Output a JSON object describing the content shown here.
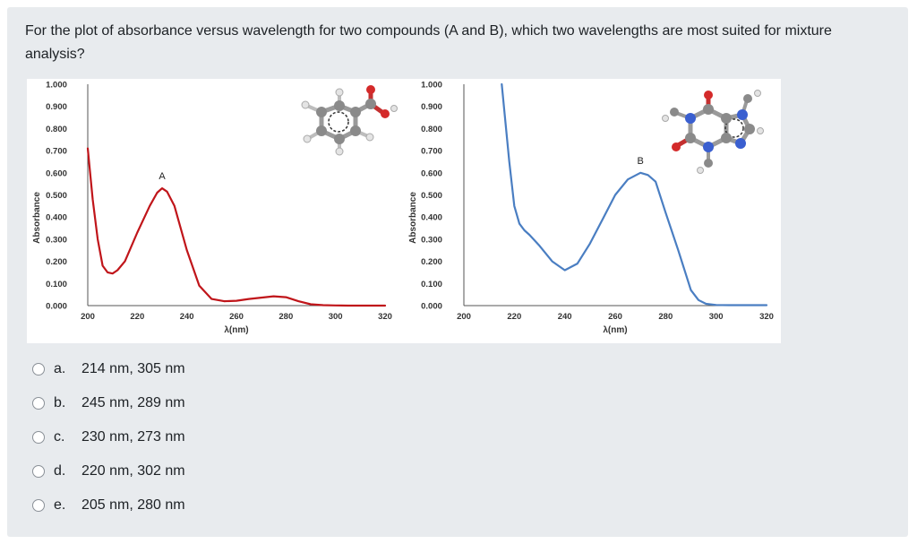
{
  "question": {
    "text": "For the plot of absorbance versus wavelength for two compounds (A and B), which two wavelengths are most suited for mixture analysis?"
  },
  "chart_data": [
    {
      "type": "line",
      "xlabel": "λ(nm)",
      "ylabel": "Absorbance",
      "xlim": [
        200,
        320
      ],
      "ylim": [
        0,
        1.0
      ],
      "xticks": [
        "200",
        "220",
        "240",
        "260",
        "280",
        "300",
        "320"
      ],
      "yticks": [
        "0.000",
        "0.100",
        "0.200",
        "0.300",
        "0.400",
        "0.500",
        "0.600",
        "0.700",
        "0.800",
        "0.900",
        "1.000"
      ],
      "annotation": "A",
      "grid": false,
      "series": [
        {
          "color": "#c0151a",
          "x": [
            200,
            202,
            204,
            206,
            208,
            210,
            212,
            215,
            220,
            225,
            228,
            230,
            232,
            235,
            240,
            245,
            250,
            255,
            260,
            265,
            270,
            275,
            280,
            285,
            290,
            295,
            300,
            305,
            310,
            320
          ],
          "y": [
            0.71,
            0.48,
            0.3,
            0.18,
            0.15,
            0.145,
            0.16,
            0.2,
            0.33,
            0.45,
            0.51,
            0.53,
            0.515,
            0.45,
            0.25,
            0.09,
            0.03,
            0.02,
            0.022,
            0.03,
            0.036,
            0.042,
            0.038,
            0.02,
            0.006,
            0.002,
            0.001,
            0.0,
            0.0,
            0.0
          ]
        }
      ]
    },
    {
      "type": "line",
      "xlabel": "λ(nm)",
      "ylabel": "Absorbance",
      "xlim": [
        200,
        320
      ],
      "ylim": [
        0,
        1.0
      ],
      "xticks": [
        "200",
        "220",
        "240",
        "260",
        "280",
        "300",
        "320"
      ],
      "yticks": [
        "0.000",
        "0.100",
        "0.200",
        "0.300",
        "0.400",
        "0.500",
        "0.600",
        "0.700",
        "0.800",
        "0.900",
        "1.000"
      ],
      "annotation": "B",
      "grid": false,
      "series": [
        {
          "color": "#4a7ec2",
          "x": [
            215,
            218,
            220,
            222,
            224,
            226,
            230,
            235,
            240,
            245,
            250,
            255,
            260,
            265,
            270,
            273,
            276,
            280,
            285,
            290,
            293,
            296,
            300,
            305,
            310,
            320
          ],
          "y": [
            1.0,
            0.65,
            0.45,
            0.37,
            0.34,
            0.32,
            0.27,
            0.2,
            0.16,
            0.19,
            0.28,
            0.39,
            0.5,
            0.57,
            0.6,
            0.59,
            0.56,
            0.42,
            0.25,
            0.07,
            0.025,
            0.008,
            0.003,
            0.002,
            0.002,
            0.002
          ]
        }
      ]
    }
  ],
  "molecules": {
    "left_icon": "benzoic-acid-molecule-icon",
    "right_icon": "caffeine-molecule-icon"
  },
  "options": [
    {
      "letter": "a.",
      "text": "214 nm, 305 nm"
    },
    {
      "letter": "b.",
      "text": "245 nm, 289 nm"
    },
    {
      "letter": "c.",
      "text": "230 nm, 273 nm"
    },
    {
      "letter": "d.",
      "text": "220 nm, 302 nm"
    },
    {
      "letter": "e.",
      "text": "205 nm, 280 nm"
    }
  ],
  "colors": {
    "card_background": "#e8ebee",
    "series_a": "#c0151a",
    "series_b": "#4a7ec2"
  }
}
